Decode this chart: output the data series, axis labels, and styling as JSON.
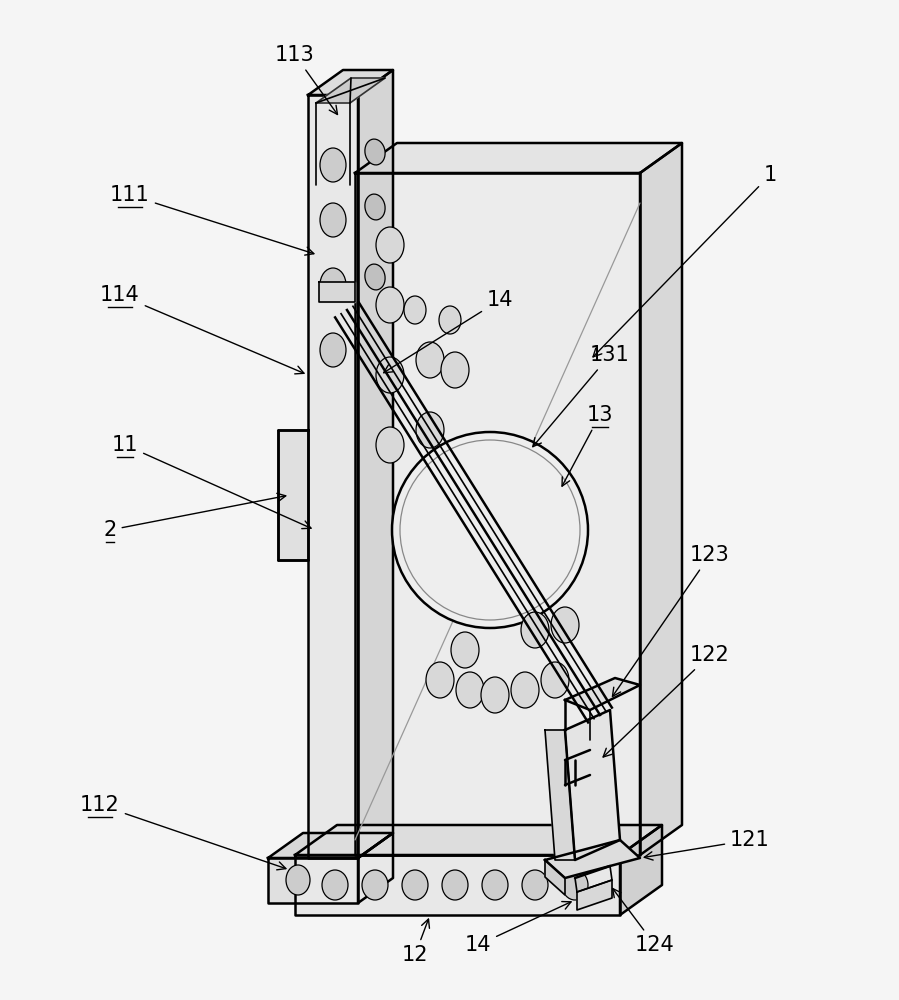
{
  "bg_color": "#f5f5f5",
  "line_color": "#000000",
  "figsize": [
    8.99,
    10.0
  ],
  "dpi": 100,
  "fs": 15
}
